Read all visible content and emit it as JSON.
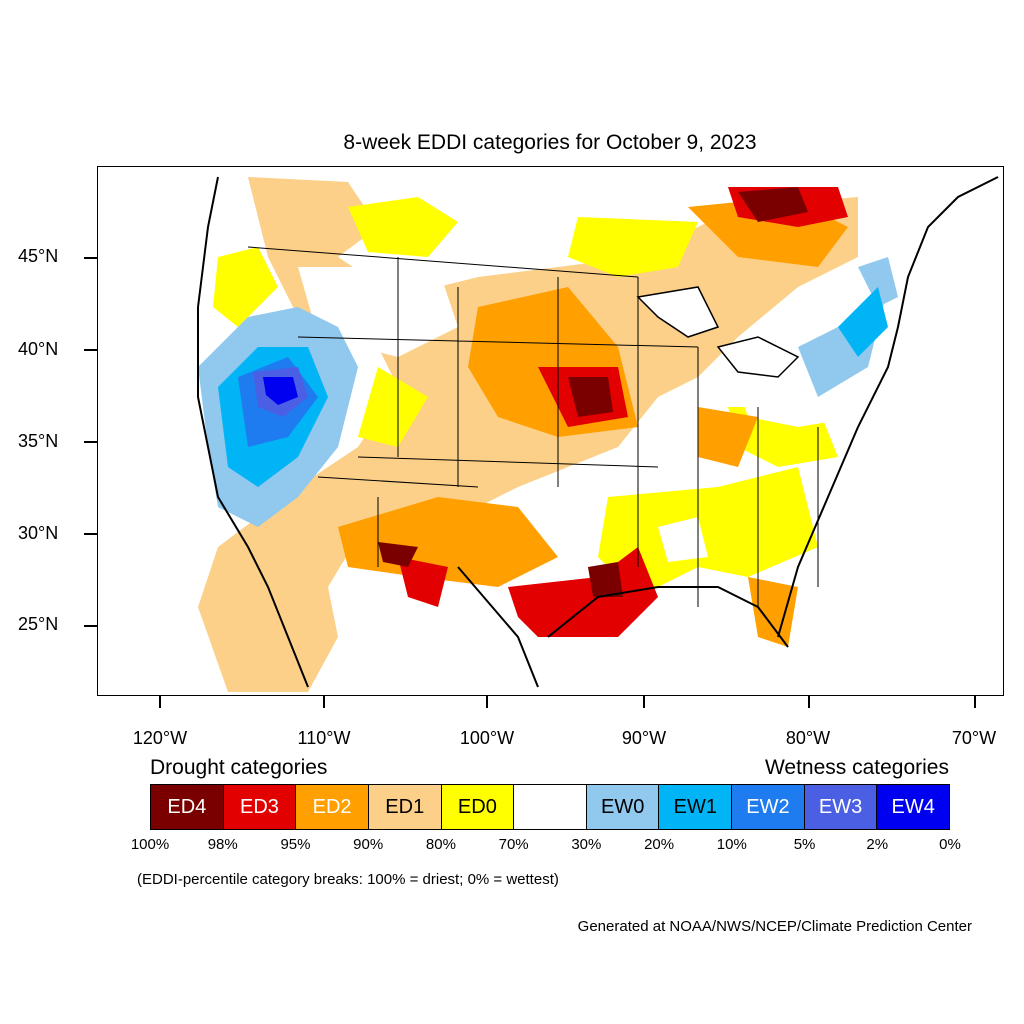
{
  "title": "8-week EDDI categories for October 9, 2023",
  "axes": {
    "y_labels": [
      "45°N",
      "40°N",
      "35°N",
      "30°N",
      "25°N"
    ],
    "x_labels": [
      "120°W",
      "110°W",
      "100°W",
      "90°W",
      "80°W",
      "70°W"
    ]
  },
  "legend": {
    "drought_title": "Drought categories",
    "wetness_title": "Wetness categories",
    "categories": [
      {
        "label": "ED4",
        "color": "#7a0000",
        "text_color": "#ffffff"
      },
      {
        "label": "ED3",
        "color": "#e30000",
        "text_color": "#ffffff"
      },
      {
        "label": "ED2",
        "color": "#ff9f00",
        "text_color": "#ffffff"
      },
      {
        "label": "ED1",
        "color": "#fcd088",
        "text_color": "#000000"
      },
      {
        "label": "ED0",
        "color": "#ffff00",
        "text_color": "#000000"
      },
      {
        "label": "",
        "color": "#ffffff",
        "text_color": "#000000"
      },
      {
        "label": "EW0",
        "color": "#91c8ee",
        "text_color": "#000000"
      },
      {
        "label": "EW1",
        "color": "#00b4f5",
        "text_color": "#000000"
      },
      {
        "label": "EW2",
        "color": "#1e7cf0",
        "text_color": "#ffffff"
      },
      {
        "label": "EW3",
        "color": "#4a5fe3",
        "text_color": "#ffffff"
      },
      {
        "label": "EW4",
        "color": "#0000f0",
        "text_color": "#ffffff"
      }
    ],
    "breaks": [
      "100%",
      "98%",
      "95%",
      "90%",
      "80%",
      "70%",
      "30%",
      "20%",
      "10%",
      "5%",
      "2%",
      "0%"
    ]
  },
  "note": "(EDDI-percentile category breaks: 100% = driest; 0% = wettest)",
  "credit": "Generated at NOAA/NWS/NCEP/Climate Prediction Center"
}
